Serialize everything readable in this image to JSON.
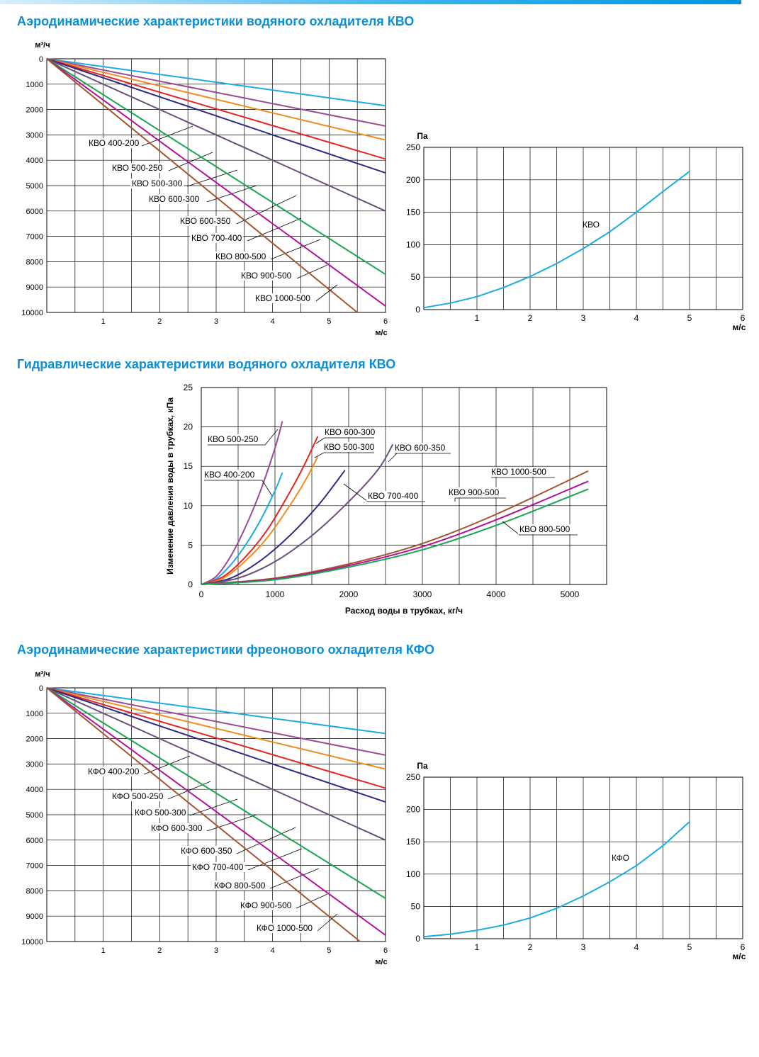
{
  "titles": {
    "aero_kvo": "Аэродинамические характеристики водяного охладителя КВО",
    "hydro_kvo": "Гидравлические характеристики водяного охладителя КВО",
    "aero_kfo": "Аэродинамические характеристики фреонового охладителя КФО"
  },
  "colors": {
    "accent": "#0a8fd6",
    "grid": "#000000",
    "cyan": "#1aabe6",
    "purple": "#9a4a93",
    "orange": "#f28c1e",
    "red": "#e52521",
    "navy": "#2b2b86",
    "slate": "#6a4f7c",
    "green": "#1aa551",
    "magenta": "#b2119b",
    "brown": "#a4552e"
  },
  "chart_data": [
    {
      "id": "aero-kvo",
      "type": "line",
      "title": "Аэродинамические характеристики водяного охладителя КВО",
      "xlabel": "м/с",
      "ylabel": "м³/ч",
      "xlim": [
        0,
        6
      ],
      "ylim": [
        0,
        10000
      ],
      "y_inverted": true,
      "x_ticks": [
        "1",
        "2",
        "3",
        "4",
        "5",
        "6"
      ],
      "y_ticks": [
        "0",
        "1000",
        "2000",
        "3000",
        "4000",
        "5000",
        "6000",
        "7000",
        "8000",
        "9000",
        "10000"
      ],
      "grid": true,
      "series": [
        {
          "name": "КВО 400-200",
          "color": "cyan",
          "x": [
            0,
            6
          ],
          "y": [
            0,
            1850
          ]
        },
        {
          "name": "КВО 500-250",
          "color": "purple",
          "x": [
            0,
            6
          ],
          "y": [
            0,
            2650
          ]
        },
        {
          "name": "КВО 500-300",
          "color": "orange",
          "x": [
            0,
            6
          ],
          "y": [
            0,
            3200
          ]
        },
        {
          "name": "КВО 600-300",
          "color": "red",
          "x": [
            0,
            6
          ],
          "y": [
            0,
            3950
          ]
        },
        {
          "name": "КВО 600-350",
          "color": "navy",
          "x": [
            0,
            6
          ],
          "y": [
            0,
            4500
          ]
        },
        {
          "name": "КВО 700-400",
          "color": "slate",
          "x": [
            0,
            6
          ],
          "y": [
            0,
            6000
          ]
        },
        {
          "name": "КВО 800-500",
          "color": "green",
          "x": [
            0,
            6
          ],
          "y": [
            0,
            8500
          ]
        },
        {
          "name": "КВО 900-500",
          "color": "magenta",
          "x": [
            0,
            6
          ],
          "y": [
            0,
            9750
          ]
        },
        {
          "name": "КВО 1000-500",
          "color": "brown",
          "x": [
            0,
            5.5
          ],
          "y": [
            0,
            10000
          ]
        }
      ]
    },
    {
      "id": "pa-kvo",
      "type": "line",
      "xlabel": "м/с",
      "ylabel": "Па",
      "xlim": [
        0,
        6
      ],
      "ylim": [
        0,
        250
      ],
      "x_ticks": [
        "1",
        "2",
        "3",
        "4",
        "5",
        "6"
      ],
      "y_ticks": [
        "0",
        "50",
        "100",
        "150",
        "200",
        "250"
      ],
      "grid": true,
      "series": [
        {
          "name": "КВО",
          "color": "cyan",
          "x": [
            0,
            0.5,
            1,
            1.5,
            2,
            2.5,
            3,
            3.5,
            4,
            4.5,
            5
          ],
          "y": [
            3,
            10,
            20,
            34,
            51,
            71,
            94,
            120,
            150,
            182,
            213
          ]
        }
      ]
    },
    {
      "id": "hydro-kvo",
      "type": "line",
      "title": "Гидравлические характеристики водяного охладителя КВО",
      "xlabel": "Расход воды в трубках, кг/ч",
      "ylabel": "Изменение давления воды в трубках, кПа",
      "xlim": [
        0,
        5500
      ],
      "ylim": [
        0,
        25
      ],
      "x_ticks": [
        "0",
        "1000",
        "2000",
        "3000",
        "4000",
        "5000"
      ],
      "y_ticks": [
        "0",
        "5",
        "10",
        "15",
        "20",
        "25"
      ],
      "grid": true,
      "series": [
        {
          "name": "КВО 500-250",
          "color": "purple",
          "x": [
            0,
            200,
            400,
            600,
            800,
            1000,
            1100
          ],
          "y": [
            0,
            1.0,
            3.6,
            7.3,
            11.8,
            17.3,
            20.7
          ]
        },
        {
          "name": "КВО 400-200",
          "color": "cyan",
          "x": [
            0,
            200,
            400,
            600,
            800,
            1000,
            1100
          ],
          "y": [
            0,
            0.7,
            2.5,
            5.0,
            8.1,
            11.9,
            14.2
          ]
        },
        {
          "name": "КВО 600-300",
          "color": "red",
          "x": [
            0,
            300,
            600,
            900,
            1200,
            1400,
            1580
          ],
          "y": [
            0,
            1.0,
            3.5,
            7.0,
            11.7,
            15.2,
            18.8
          ]
        },
        {
          "name": "КВО 500-300",
          "color": "orange",
          "x": [
            0,
            300,
            600,
            900,
            1200,
            1400,
            1580
          ],
          "y": [
            0,
            0.8,
            3.0,
            6.0,
            10.0,
            13.0,
            16.2
          ]
        },
        {
          "name": "КВО 600-350",
          "color": "navy",
          "x": [
            0,
            400,
            800,
            1200,
            1600,
            1950
          ],
          "y": [
            0,
            0.8,
            3.0,
            6.2,
            10.2,
            14.5
          ]
        },
        {
          "name": "КВО 700-400",
          "color": "slate",
          "x": [
            0,
            500,
            1000,
            1500,
            2000,
            2400,
            2600
          ],
          "y": [
            0,
            0.8,
            2.9,
            6.2,
            10.5,
            14.6,
            17.8
          ]
        },
        {
          "name": "КВО 1000-500",
          "color": "brown",
          "x": [
            0,
            1000,
            2000,
            3000,
            4000,
            5250
          ],
          "y": [
            0,
            0.8,
            2.6,
            5.2,
            8.9,
            14.4
          ]
        },
        {
          "name": "КВО 900-500",
          "color": "magenta",
          "x": [
            0,
            1000,
            2000,
            3000,
            4000,
            5250
          ],
          "y": [
            0,
            0.7,
            2.4,
            4.8,
            8.2,
            13.1
          ]
        },
        {
          "name": "КВО 800-500",
          "color": "green",
          "x": [
            0,
            1000,
            2000,
            3000,
            4000,
            5250
          ],
          "y": [
            0,
            0.6,
            2.2,
            4.4,
            7.5,
            12.1
          ]
        }
      ]
    },
    {
      "id": "aero-kfo",
      "type": "line",
      "title": "Аэродинамические характеристики фреонового охладителя КФО",
      "xlabel": "м/с",
      "ylabel": "м³/ч",
      "xlim": [
        0,
        6
      ],
      "ylim": [
        0,
        10000
      ],
      "y_inverted": true,
      "x_ticks": [
        "1",
        "2",
        "3",
        "4",
        "5",
        "6"
      ],
      "y_ticks": [
        "0",
        "1000",
        "2000",
        "3000",
        "4000",
        "5000",
        "6000",
        "7000",
        "8000",
        "9000",
        "10000"
      ],
      "grid": true,
      "series": [
        {
          "name": "КФО 400-200",
          "color": "cyan",
          "x": [
            0,
            6
          ],
          "y": [
            0,
            1800
          ]
        },
        {
          "name": "КФО 500-250",
          "color": "purple",
          "x": [
            0,
            6
          ],
          "y": [
            0,
            2650
          ]
        },
        {
          "name": "КФО 500-300",
          "color": "orange",
          "x": [
            0,
            6
          ],
          "y": [
            0,
            3200
          ]
        },
        {
          "name": "КФО 600-300",
          "color": "red",
          "x": [
            0,
            6
          ],
          "y": [
            0,
            3950
          ]
        },
        {
          "name": "КФО 600-350",
          "color": "navy",
          "x": [
            0,
            6
          ],
          "y": [
            0,
            4500
          ]
        },
        {
          "name": "КФО 700-400",
          "color": "slate",
          "x": [
            0,
            6
          ],
          "y": [
            0,
            6000
          ]
        },
        {
          "name": "КФО 800-500",
          "color": "green",
          "x": [
            0,
            6
          ],
          "y": [
            0,
            8300
          ]
        },
        {
          "name": "КФО 900-500",
          "color": "magenta",
          "x": [
            0,
            6
          ],
          "y": [
            0,
            9750
          ]
        },
        {
          "name": "КФО 1000-500",
          "color": "brown",
          "x": [
            0,
            5.55
          ],
          "y": [
            0,
            10000
          ]
        }
      ]
    },
    {
      "id": "pa-kfo",
      "type": "line",
      "xlabel": "м/с",
      "ylabel": "Па",
      "xlim": [
        0,
        6
      ],
      "ylim": [
        0,
        250
      ],
      "x_ticks": [
        "1",
        "2",
        "3",
        "4",
        "5",
        "6"
      ],
      "y_ticks": [
        "0",
        "50",
        "100",
        "150",
        "200",
        "250"
      ],
      "grid": true,
      "series": [
        {
          "name": "КФО",
          "color": "cyan",
          "x": [
            0,
            0.5,
            1,
            1.5,
            2,
            2.5,
            3,
            3.5,
            4,
            4.5,
            5
          ],
          "y": [
            3,
            7,
            13,
            21,
            32,
            47,
            66,
            88,
            113,
            144,
            181
          ]
        }
      ]
    }
  ]
}
